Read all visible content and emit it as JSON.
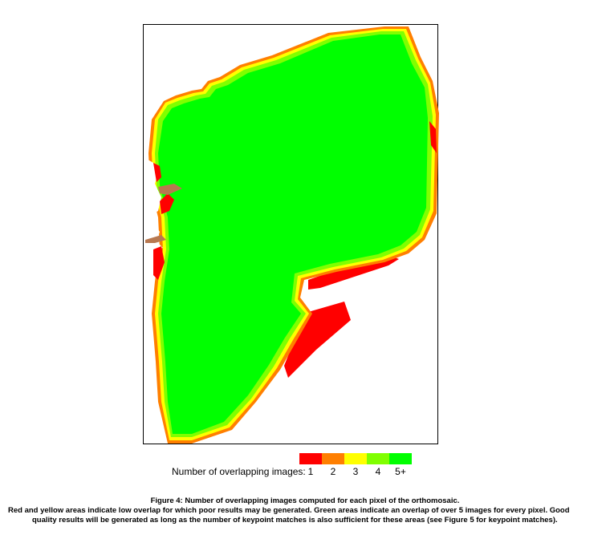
{
  "map": {
    "colors": {
      "overlap_1": "#ff0000",
      "overlap_2": "#ff7f00",
      "overlap_3": "#ffff00",
      "overlap_4": "#80ff00",
      "overlap_5_plus": "#00ff00"
    }
  },
  "legend": {
    "label": "Number of overlapping images:",
    "items": [
      {
        "value": "1",
        "color": "#ff0000"
      },
      {
        "value": "2",
        "color": "#ff7f00"
      },
      {
        "value": "3",
        "color": "#ffff00"
      },
      {
        "value": "4",
        "color": "#80ff00"
      },
      {
        "value": "5+",
        "color": "#00ff00"
      }
    ]
  },
  "caption": {
    "title": "Figure 4: Number of overlapping images computed for each pixel of the orthomosaic.",
    "line2": "Red and yellow areas indicate low overlap for which poor results may be generated. Green areas indicate an overlap of over 5 images for every pixel. Good",
    "line3": "quality results will be generated as long as the number of keypoint matches is also sufficient for these areas (see Figure 5 for keypoint matches)."
  }
}
